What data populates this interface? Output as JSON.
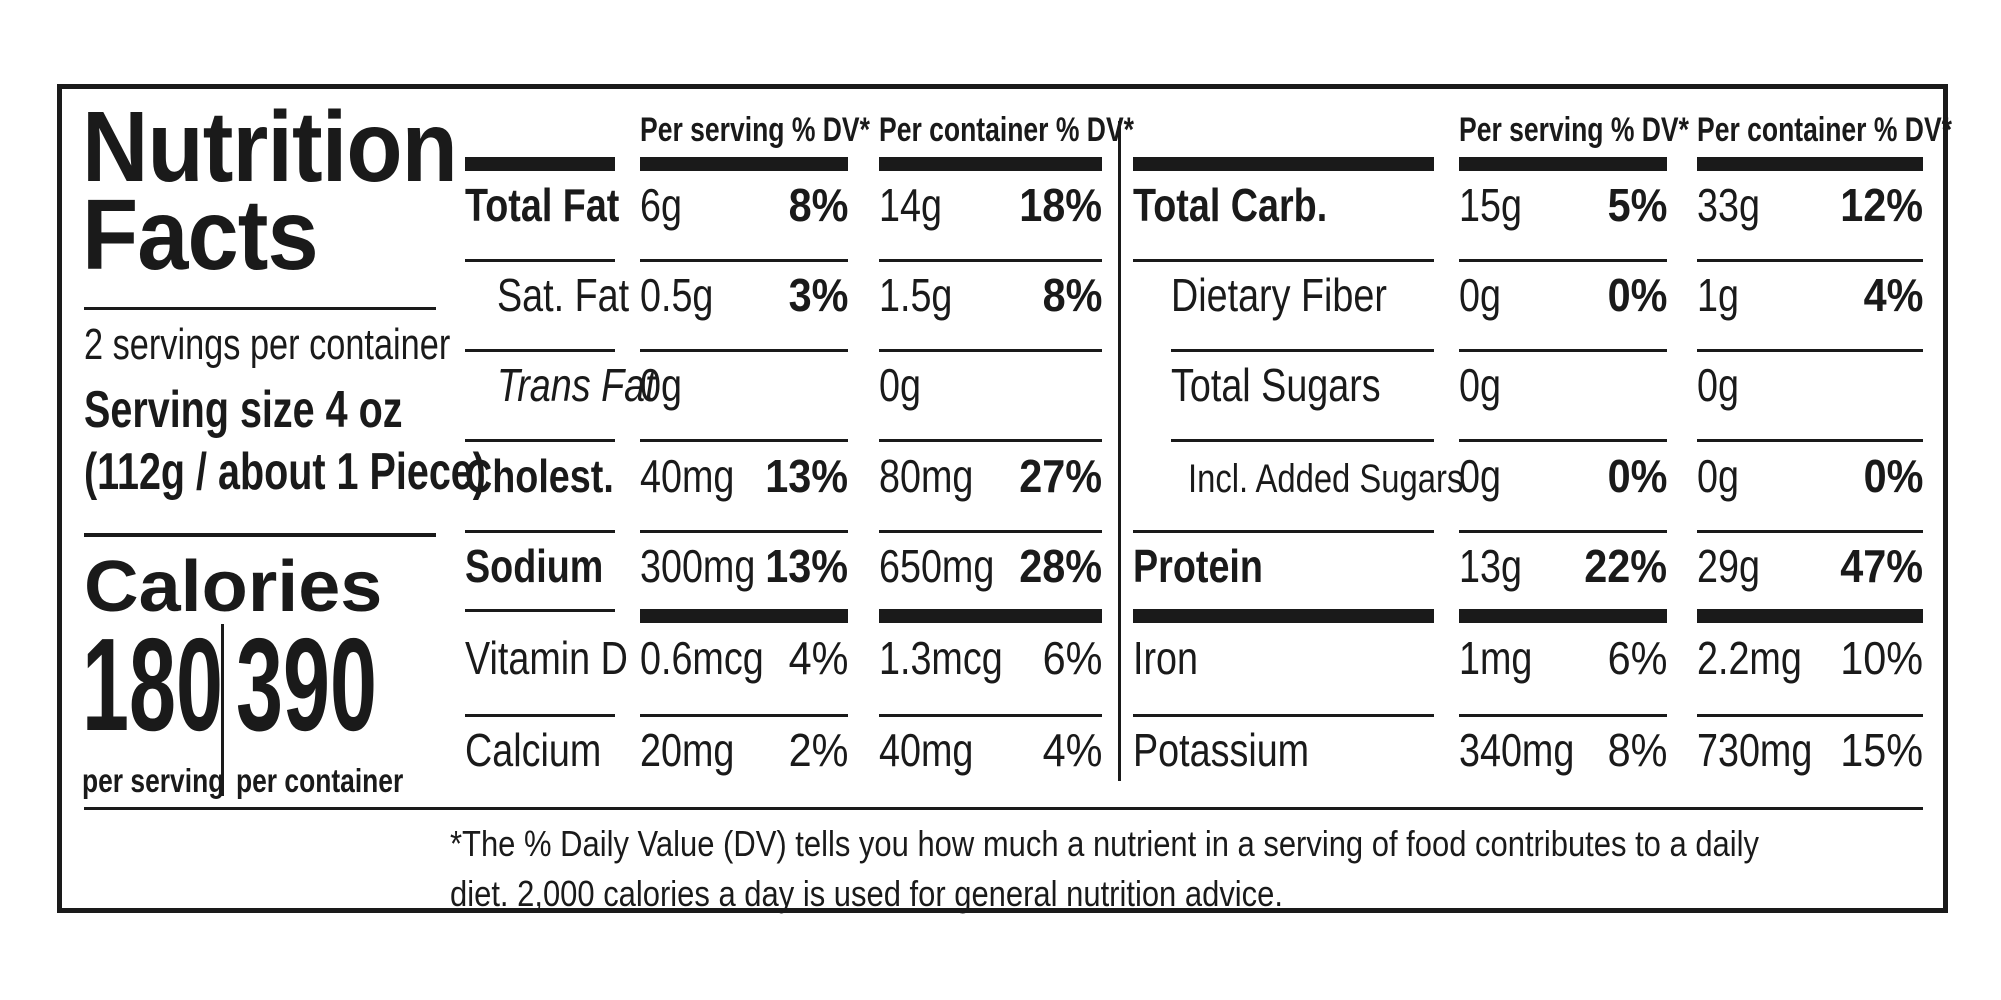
{
  "title": "Nutrition Facts",
  "servings_per_container": "2 servings per container",
  "serving_size": "Serving size 4 oz",
  "serving_size_detail": "(112g / about 1 Piece)",
  "calories": {
    "label": "Calories",
    "per_serving": "180",
    "per_container": "390",
    "per_serving_label": "per serving",
    "per_container_label": "per container"
  },
  "headers": {
    "per_serving": "Per serving % DV*",
    "per_container": "Per container % DV*"
  },
  "left_rows": [
    {
      "name": "Total Fat",
      "serv": "6g",
      "serv_dv": "8%",
      "cont": "14g",
      "cont_dv": "18%"
    },
    {
      "name": "Sat. Fat",
      "serv": "0.5g",
      "serv_dv": "3%",
      "cont": "1.5g",
      "cont_dv": "8%"
    },
    {
      "name": "Trans Fat",
      "serv": "0g",
      "serv_dv": "",
      "cont": "0g",
      "cont_dv": ""
    },
    {
      "name": "Cholest.",
      "serv": "40mg",
      "serv_dv": "13%",
      "cont": "80mg",
      "cont_dv": "27%"
    },
    {
      "name": "Sodium",
      "serv": "300mg",
      "serv_dv": "13%",
      "cont": "650mg",
      "cont_dv": "28%"
    },
    {
      "name": "Vitamin D",
      "serv": "0.6mcg",
      "serv_dv": "4%",
      "cont": "1.3mcg",
      "cont_dv": "6%"
    },
    {
      "name": "Calcium",
      "serv": "20mg",
      "serv_dv": "2%",
      "cont": "40mg",
      "cont_dv": "4%"
    }
  ],
  "right_rows": [
    {
      "name": "Total Carb.",
      "serv": "15g",
      "serv_dv": "5%",
      "cont": "33g",
      "cont_dv": "12%"
    },
    {
      "name": "Dietary Fiber",
      "serv": "0g",
      "serv_dv": "0%",
      "cont": "1g",
      "cont_dv": "4%"
    },
    {
      "name": "Total Sugars",
      "serv": "0g",
      "serv_dv": "",
      "cont": "0g",
      "cont_dv": ""
    },
    {
      "name": "Incl. Added Sugars",
      "serv": "0g",
      "serv_dv": "0%",
      "cont": "0g",
      "cont_dv": "0%"
    },
    {
      "name": "Protein",
      "serv": "13g",
      "serv_dv": "22%",
      "cont": "29g",
      "cont_dv": "47%"
    },
    {
      "name": "Iron",
      "serv": "1mg",
      "serv_dv": "6%",
      "cont": "2.2mg",
      "cont_dv": "10%"
    },
    {
      "name": "Potassium",
      "serv": "340mg",
      "serv_dv": "8%",
      "cont": "730mg",
      "cont_dv": "15%"
    }
  ],
  "footnote": "*The % Daily Value (DV) tells you how much a nutrient in a serving of food contributes to a daily diet. 2,000 calories a day is used for general nutrition advice."
}
